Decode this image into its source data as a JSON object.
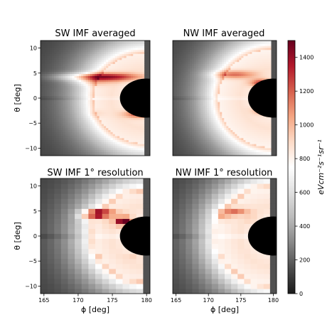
{
  "chart_data": [
    {
      "type": "heatmap",
      "title": "SW IMF averaged",
      "variant": "averaged",
      "imf": "SW",
      "xlabel": "",
      "ylabel": "θ [deg]",
      "xlim": [
        164.5,
        180.5
      ],
      "ylim": [
        -11.5,
        11.5
      ],
      "xticks": [],
      "yticks": [
        -10,
        -5,
        0,
        5,
        10
      ],
      "planet_disk": {
        "center": [
          180,
          0
        ],
        "radius": 3.9
      },
      "features": [
        {
          "x": 173.2,
          "y": 4.3,
          "w": 4,
          "value": 1250
        },
        {
          "x": 172.0,
          "y": 3.2,
          "w": 2.2,
          "value": 900
        },
        {
          "x": 171.0,
          "y": 2.0,
          "w": 1.2,
          "value": 700
        },
        {
          "x": 172.6,
          "y": -3.0,
          "w": 1.0,
          "value": 850
        },
        {
          "x": 175.2,
          "y": 2.6,
          "w": 2.2,
          "value": 700
        },
        {
          "x": 178.8,
          "y": -3.1,
          "w": 1.5,
          "value": 1100
        }
      ]
    },
    {
      "type": "heatmap",
      "title": "NW IMF averaged",
      "variant": "averaged",
      "imf": "NW",
      "xlabel": "",
      "ylabel": "",
      "xlim": [
        164.5,
        180.5
      ],
      "ylim": [
        -11.5,
        11.5
      ],
      "xticks": [],
      "yticks": [],
      "planet_disk": {
        "center": [
          180,
          0
        ],
        "radius": 3.9
      },
      "features": [
        {
          "x": 173.8,
          "y": 4.8,
          "w": 2.4,
          "value": 1050
        },
        {
          "x": 171.8,
          "y": 3.5,
          "w": 1.8,
          "value": 700
        },
        {
          "x": 176.5,
          "y": 4.0,
          "w": 1.5,
          "value": 700
        },
        {
          "x": 176.8,
          "y": 2.2,
          "w": 1.2,
          "value": 600
        },
        {
          "x": 178.2,
          "y": 3.1,
          "w": 1.2,
          "value": 1150
        },
        {
          "x": 178.6,
          "y": -2.4,
          "w": 1.2,
          "value": 1050
        }
      ]
    },
    {
      "type": "heatmap",
      "title": "SW IMF 1$^\\circ$ resolution",
      "variant": "binned",
      "imf": "SW",
      "xlabel": "ϕ [deg]",
      "ylabel": "θ [deg]",
      "xlim": [
        164.5,
        180.5
      ],
      "ylim": [
        -11.5,
        11.5
      ],
      "xticks": [
        165,
        170,
        175,
        180
      ],
      "yticks": [
        -10,
        -5,
        0,
        5,
        10
      ],
      "planet_disk": {
        "center": [
          180,
          0
        ],
        "radius": 3.9
      },
      "features": [
        {
          "x": 173.0,
          "y": 4.6,
          "w": 1.6,
          "value": 1300
        },
        {
          "x": 171.2,
          "y": 3.8,
          "w": 1.0,
          "value": 950
        },
        {
          "x": 176.8,
          "y": 3.0,
          "w": 0.8,
          "value": 1450
        },
        {
          "x": 174.5,
          "y": 2.7,
          "w": 1.0,
          "value": 850
        },
        {
          "x": 170.0,
          "y": 1.0,
          "w": 1.0,
          "value": 800
        },
        {
          "x": 170.2,
          "y": -3.5,
          "w": 1.0,
          "value": 800
        },
        {
          "x": 178.0,
          "y": -4.0,
          "w": 0.8,
          "value": 850
        }
      ]
    },
    {
      "type": "heatmap",
      "title": "NW IMF 1$^\\circ$ resolution",
      "variant": "binned",
      "imf": "NW",
      "xlabel": "ϕ [deg]",
      "ylabel": "",
      "xlim": [
        164.5,
        180.5
      ],
      "ylim": [
        -11.5,
        11.5
      ],
      "xticks": [
        165,
        170,
        175,
        180
      ],
      "yticks": [],
      "planet_disk": {
        "center": [
          180,
          0
        ],
        "radius": 3.9
      },
      "features": [
        {
          "x": 173.8,
          "y": 5.0,
          "w": 1.6,
          "value": 1050
        },
        {
          "x": 172.5,
          "y": 3.8,
          "w": 1.0,
          "value": 900
        },
        {
          "x": 176.6,
          "y": 3.5,
          "w": 1.0,
          "value": 850
        },
        {
          "x": 178.0,
          "y": 2.0,
          "w": 0.8,
          "value": 800
        },
        {
          "x": 178.2,
          "y": -3.0,
          "w": 0.8,
          "value": 800
        }
      ]
    }
  ],
  "colorbar": {
    "label": "eVcm$^{-2}$s$^{-1}$sr$^{-1}$",
    "range": [
      0,
      1500
    ],
    "ticks": [
      0,
      200,
      400,
      600,
      800,
      1000,
      1200,
      1400
    ],
    "colormap": "RdGy_r",
    "stops": [
      "#1a1a1a",
      "#4d4d4d",
      "#878787",
      "#bababa",
      "#e0e0e0",
      "#ffffff",
      "#fddbc7",
      "#f4a582",
      "#d6604d",
      "#b2182b",
      "#67001f"
    ]
  }
}
